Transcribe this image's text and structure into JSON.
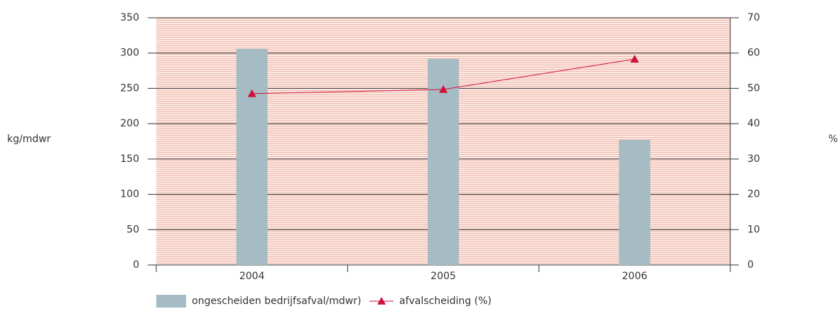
{
  "chart_data": {
    "type": "bar",
    "categories": [
      "2004",
      "2005",
      "2006"
    ],
    "series": [
      {
        "name": "ongescheiden bedrijfsafval/mdwr)",
        "type": "bar",
        "color": "#a6bcc4",
        "values": [
          306,
          292,
          177
        ]
      },
      {
        "name": "afvalscheiding (%)",
        "type": "line",
        "axis": "y2",
        "color": "#d0103a",
        "values": [
          48.5,
          49.7,
          58.3
        ]
      }
    ],
    "ylabel": "kg/mdwr",
    "y2label": "%",
    "ylim": [
      0,
      350
    ],
    "yticks": [
      0,
      50,
      100,
      150,
      200,
      250,
      300,
      350
    ],
    "y2lim": [
      0,
      70
    ],
    "y2ticks": [
      0,
      10,
      20,
      30,
      40,
      50,
      60,
      70
    ],
    "grid": true,
    "legend": "bottom-left"
  }
}
